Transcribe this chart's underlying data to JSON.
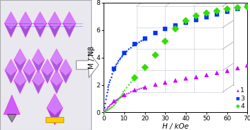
{
  "title": "",
  "xlabel": "H / kOe",
  "ylabel": "M / Nβ",
  "xlim": [
    0,
    70
  ],
  "ylim": [
    0,
    8
  ],
  "xticks": [
    0,
    10,
    20,
    30,
    40,
    50,
    60,
    70
  ],
  "yticks": [
    0,
    2,
    4,
    6,
    8
  ],
  "series1_label": "1",
  "series1_color": "#cc00ff",
  "series1_marker": "^",
  "series2_label": "3",
  "series2_color": "#0033ff",
  "series2_marker": "s",
  "series3_label": "4",
  "series3_color": "#33dd00",
  "series3_marker": "D",
  "s1_dense_H": [
    0,
    0.5,
    1.0,
    1.5,
    2.0,
    2.5,
    3.0,
    3.5,
    4.0,
    4.5,
    5.0,
    5.5,
    6.0,
    6.5,
    7.0,
    7.5,
    8.0,
    8.5,
    9.0,
    9.5,
    10.0,
    11.0,
    12.0,
    13.0,
    14.0,
    15.0,
    16.0,
    17.0,
    18.0,
    19.0,
    20.0
  ],
  "s1_dense_M": [
    0,
    0.12,
    0.22,
    0.32,
    0.41,
    0.49,
    0.56,
    0.63,
    0.7,
    0.76,
    0.82,
    0.88,
    0.93,
    0.98,
    1.03,
    1.08,
    1.13,
    1.17,
    1.22,
    1.26,
    1.3,
    1.38,
    1.45,
    1.52,
    1.58,
    1.63,
    1.68,
    1.72,
    1.77,
    1.81,
    1.84
  ],
  "s2_dense_H": [
    0,
    0.3,
    0.6,
    0.9,
    1.2,
    1.5,
    1.8,
    2.1,
    2.4,
    2.7,
    3.0,
    3.5,
    4.0,
    4.5,
    5.0,
    5.5,
    6.0,
    6.5,
    7.0,
    7.5,
    8.0,
    8.5,
    9.0,
    9.5,
    10.0,
    11.0,
    12.0,
    13.0,
    14.0,
    15.0,
    16.0,
    17.0,
    18.0,
    19.0,
    20.0
  ],
  "s2_dense_M": [
    0,
    0.35,
    0.67,
    0.96,
    1.22,
    1.46,
    1.67,
    1.87,
    2.05,
    2.21,
    2.36,
    2.6,
    2.82,
    3.02,
    3.2,
    3.36,
    3.51,
    3.64,
    3.77,
    3.88,
    3.99,
    4.09,
    4.18,
    4.27,
    4.35,
    4.5,
    4.63,
    4.75,
    4.86,
    4.96,
    5.05,
    5.14,
    5.22,
    5.29,
    5.36
  ],
  "s3_dense_H": [
    0,
    0.5,
    1.0,
    1.5,
    2.0,
    2.5,
    3.0,
    3.5,
    4.0,
    4.5,
    5.0,
    5.5,
    6.0,
    6.5,
    7.0,
    7.5,
    8.0,
    8.5,
    9.0,
    9.5,
    10.0,
    11.0,
    12.0,
    13.0,
    14.0,
    15.0
  ],
  "s3_dense_M": [
    0,
    0.05,
    0.1,
    0.15,
    0.2,
    0.26,
    0.32,
    0.38,
    0.45,
    0.52,
    0.6,
    0.68,
    0.77,
    0.87,
    0.97,
    1.07,
    1.18,
    1.29,
    1.4,
    1.51,
    1.62,
    1.83,
    2.03,
    2.21,
    2.38,
    2.55
  ],
  "s1_sparse_H": [
    5,
    10,
    15,
    20,
    25,
    30,
    35,
    40,
    45,
    50,
    55,
    60,
    65,
    70
  ],
  "s1_sparse_M": [
    0.82,
    1.3,
    1.63,
    1.84,
    2.05,
    2.2,
    2.33,
    2.46,
    2.6,
    2.74,
    2.88,
    3.05,
    3.22,
    3.45
  ],
  "s2_sparse_H": [
    5,
    10,
    15,
    20,
    25,
    30,
    35,
    40,
    45,
    50,
    55,
    60,
    65,
    70
  ],
  "s2_sparse_M": [
    3.2,
    4.35,
    4.96,
    5.36,
    5.8,
    6.1,
    6.35,
    6.55,
    6.75,
    6.95,
    7.15,
    7.35,
    7.55,
    7.72
  ],
  "s3_sparse_H": [
    15,
    20,
    25,
    30,
    35,
    40,
    45,
    50,
    55,
    60,
    65,
    70
  ],
  "s3_sparse_M": [
    2.55,
    3.3,
    4.2,
    5.2,
    6.1,
    6.7,
    7.05,
    7.25,
    7.4,
    7.52,
    7.62,
    7.7
  ],
  "cage_color": "#b0b8c8",
  "cage_alpha": 0.6,
  "left_box_color": "#e8e8ee",
  "left_box_edge": "#aaaaaa",
  "arrow_color": "#909090"
}
